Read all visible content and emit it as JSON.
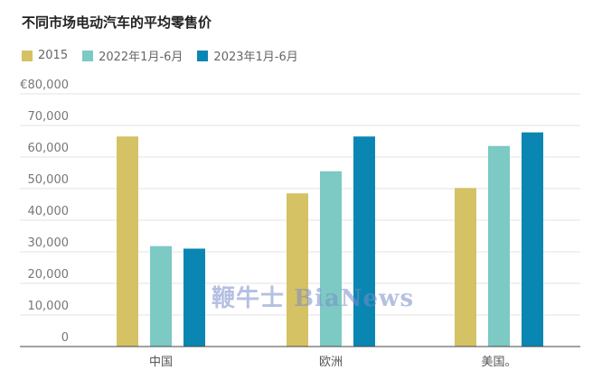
{
  "chart_data": {
    "type": "bar",
    "title": "不同市场电动汽车的平均零售价",
    "categories": [
      "中国",
      "欧洲",
      "美国。"
    ],
    "series": [
      {
        "name": "2015",
        "color": "#d4c264",
        "values": [
          66500,
          48500,
          50200
        ]
      },
      {
        "name": "2022年1月-6月",
        "color": "#7dc9c3",
        "values": [
          31800,
          55500,
          63500
        ]
      },
      {
        "name": "2023年1月-6月",
        "color": "#0a86b2",
        "values": [
          31000,
          66500,
          67800
        ]
      }
    ],
    "ylim": [
      0,
      80000
    ],
    "yticks": [
      "0",
      "10,000",
      "20,000",
      "30,000",
      "40,000",
      "50,000",
      "60,000",
      "70,000",
      "€80,000"
    ],
    "xlabel": "",
    "ylabel": "",
    "grid": true,
    "legend_position": "top-left"
  },
  "watermark": "鞭牛士 BiaNews"
}
